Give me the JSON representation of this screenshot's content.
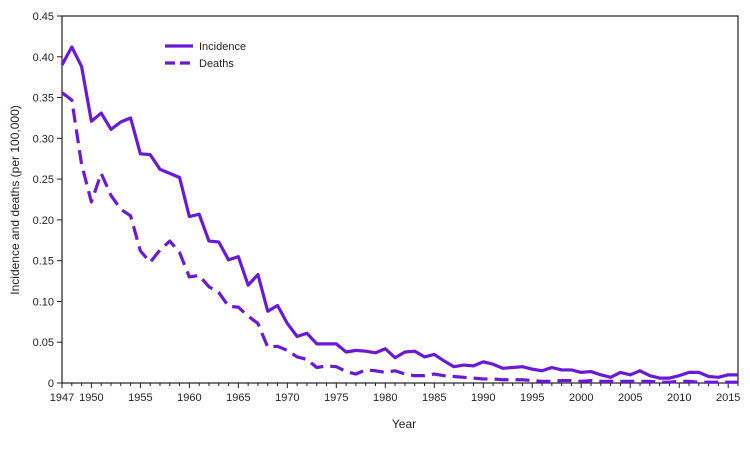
{
  "chart_data": {
    "type": "line",
    "xlabel": "Year",
    "ylabel": "Incidence and deaths (per 100,000)",
    "xlim": [
      1947,
      2016
    ],
    "ylim": [
      0,
      0.45
    ],
    "x_ticks": [
      1947,
      1950,
      1955,
      1960,
      1965,
      1970,
      1975,
      1980,
      1985,
      1990,
      1995,
      2000,
      2005,
      2010,
      2015
    ],
    "y_ticks": [
      0,
      0.05,
      0.1,
      0.15,
      0.2,
      0.25,
      0.3,
      0.35,
      0.4,
      0.45
    ],
    "y_tick_labels": [
      "0",
      "0.05",
      "0.10",
      "0.15",
      "0.20",
      "0.25",
      "0.30",
      "0.35",
      "0.40",
      "0.45"
    ],
    "legend_position": "top-left",
    "grid": false,
    "x": [
      1947,
      1948,
      1949,
      1950,
      1951,
      1952,
      1953,
      1954,
      1955,
      1956,
      1957,
      1958,
      1959,
      1960,
      1961,
      1962,
      1963,
      1964,
      1965,
      1966,
      1967,
      1968,
      1969,
      1970,
      1971,
      1972,
      1973,
      1974,
      1975,
      1976,
      1977,
      1978,
      1979,
      1980,
      1981,
      1982,
      1983,
      1984,
      1985,
      1986,
      1987,
      1988,
      1989,
      1990,
      1991,
      1992,
      1993,
      1994,
      1995,
      1996,
      1997,
      1998,
      1999,
      2000,
      2001,
      2002,
      2003,
      2004,
      2005,
      2006,
      2007,
      2008,
      2009,
      2010,
      2011,
      2012,
      2013,
      2014,
      2015,
      2016
    ],
    "series": [
      {
        "name": "Incidence",
        "style": "solid",
        "color": "#6a1ad6",
        "values": [
          0.39,
          0.412,
          0.388,
          0.321,
          0.331,
          0.311,
          0.32,
          0.325,
          0.281,
          0.28,
          0.262,
          0.257,
          0.252,
          0.204,
          0.207,
          0.174,
          0.173,
          0.151,
          0.155,
          0.12,
          0.133,
          0.088,
          0.095,
          0.073,
          0.057,
          0.061,
          0.048,
          0.048,
          0.048,
          0.038,
          0.04,
          0.039,
          0.037,
          0.042,
          0.031,
          0.038,
          0.039,
          0.032,
          0.035,
          0.027,
          0.02,
          0.022,
          0.021,
          0.026,
          0.023,
          0.018,
          0.019,
          0.02,
          0.017,
          0.015,
          0.019,
          0.016,
          0.016,
          0.013,
          0.014,
          0.01,
          0.007,
          0.013,
          0.01,
          0.015,
          0.009,
          0.006,
          0.006,
          0.009,
          0.013,
          0.013,
          0.008,
          0.007,
          0.01,
          0.01
        ]
      },
      {
        "name": "Deaths",
        "style": "dashed",
        "color": "#6a1ad6",
        "values": [
          0.356,
          0.347,
          0.268,
          0.222,
          0.257,
          0.23,
          0.213,
          0.205,
          0.162,
          0.148,
          0.163,
          0.174,
          0.16,
          0.13,
          0.132,
          0.118,
          0.111,
          0.094,
          0.093,
          0.082,
          0.073,
          0.044,
          0.045,
          0.04,
          0.032,
          0.029,
          0.019,
          0.021,
          0.02,
          0.014,
          0.011,
          0.016,
          0.015,
          0.013,
          0.015,
          0.011,
          0.009,
          0.009,
          0.011,
          0.009,
          0.008,
          0.007,
          0.006,
          0.005,
          0.005,
          0.004,
          0.004,
          0.004,
          0.003,
          0.002,
          0.002,
          0.003,
          0.003,
          0.002,
          0.003,
          0.002,
          0.002,
          0.002,
          0.002,
          0.002,
          0.002,
          0.001,
          0.001,
          0.002,
          0.002,
          0.001,
          0.001,
          0.001,
          0.001,
          0.001
        ]
      }
    ]
  }
}
